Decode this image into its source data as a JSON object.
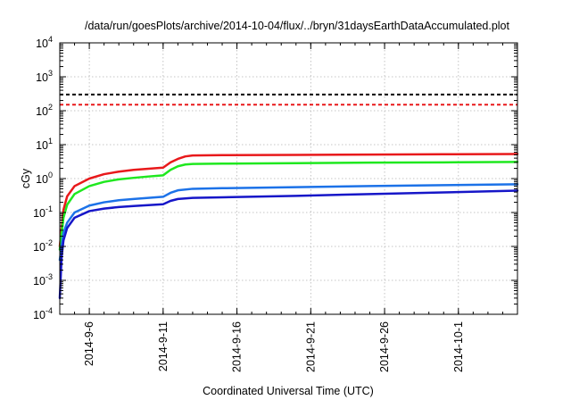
{
  "chart_data": {
    "type": "line",
    "title": "/data/run/goesPlots/archive/2014-10-04/flux/../bryn/31daysEarthDataAccumulated.plot",
    "xlabel": "Coordinated Universal Time (UTC)",
    "ylabel": "cGy",
    "xlim": [
      "2014-09-04",
      "2014-10-05"
    ],
    "ylim": [
      0.0001,
      10000
    ],
    "yscale": "log",
    "grid": true,
    "x_ticks": [
      {
        "date": "2014-09-06",
        "label": "2014-9-6"
      },
      {
        "date": "2014-09-11",
        "label": "2014-9-11"
      },
      {
        "date": "2014-09-16",
        "label": "2014-9-16"
      },
      {
        "date": "2014-09-21",
        "label": "2014-9-21"
      },
      {
        "date": "2014-09-26",
        "label": "2014-9-26"
      },
      {
        "date": "2014-10-01",
        "label": "2014-10-1"
      }
    ],
    "y_ticks": [
      {
        "value": 0.0001,
        "base": "10",
        "exp": "-4"
      },
      {
        "value": 0.001,
        "base": "10",
        "exp": "-3"
      },
      {
        "value": 0.01,
        "base": "10",
        "exp": "-2"
      },
      {
        "value": 0.1,
        "base": "10",
        "exp": "-1"
      },
      {
        "value": 1,
        "base": "10",
        "exp": "0"
      },
      {
        "value": 10,
        "base": "10",
        "exp": "1"
      },
      {
        "value": 100,
        "base": "10",
        "exp": "2"
      },
      {
        "value": 1000,
        "base": "10",
        "exp": "3"
      },
      {
        "value": 10000,
        "base": "10",
        "exp": "4"
      }
    ],
    "reference_lines": [
      {
        "y": 300,
        "color": "#000000",
        "style": "dashed"
      },
      {
        "y": 150,
        "color": "#e8191b",
        "style": "dashed"
      }
    ],
    "series": [
      {
        "color": "#e8191b",
        "points": [
          [
            "2014-09-04T00:00",
            0.01
          ],
          [
            "2014-09-04T06:00",
            0.12
          ],
          [
            "2014-09-04T12:00",
            0.3
          ],
          [
            "2014-09-05T00:00",
            0.6
          ],
          [
            "2014-09-06T00:00",
            1.0
          ],
          [
            "2014-09-07T00:00",
            1.35
          ],
          [
            "2014-09-08T00:00",
            1.6
          ],
          [
            "2014-09-09T00:00",
            1.8
          ],
          [
            "2014-09-10T00:00",
            1.95
          ],
          [
            "2014-09-11T00:00",
            2.1
          ],
          [
            "2014-09-11T12:00",
            3.0
          ],
          [
            "2014-09-12T00:00",
            3.8
          ],
          [
            "2014-09-12T12:00",
            4.5
          ],
          [
            "2014-09-13T00:00",
            4.8
          ],
          [
            "2014-09-15T00:00",
            4.9
          ],
          [
            "2014-09-20T00:00",
            5.0
          ],
          [
            "2014-09-25T00:00",
            5.1
          ],
          [
            "2014-09-30T00:00",
            5.2
          ],
          [
            "2014-10-05T00:00",
            5.3
          ]
        ]
      },
      {
        "color": "#1fe81f",
        "points": [
          [
            "2014-09-04T00:00",
            0.008
          ],
          [
            "2014-09-04T06:00",
            0.07
          ],
          [
            "2014-09-04T12:00",
            0.17
          ],
          [
            "2014-09-05T00:00",
            0.35
          ],
          [
            "2014-09-06T00:00",
            0.6
          ],
          [
            "2014-09-07T00:00",
            0.8
          ],
          [
            "2014-09-08T00:00",
            0.95
          ],
          [
            "2014-09-09T00:00",
            1.05
          ],
          [
            "2014-09-10T00:00",
            1.15
          ],
          [
            "2014-09-11T00:00",
            1.25
          ],
          [
            "2014-09-11T12:00",
            1.8
          ],
          [
            "2014-09-12T00:00",
            2.3
          ],
          [
            "2014-09-12T12:00",
            2.6
          ],
          [
            "2014-09-13T00:00",
            2.7
          ],
          [
            "2014-09-15T00:00",
            2.75
          ],
          [
            "2014-09-20T00:00",
            2.85
          ],
          [
            "2014-09-25T00:00",
            2.95
          ],
          [
            "2014-09-30T00:00",
            3.0
          ],
          [
            "2014-10-05T00:00",
            3.1
          ]
        ]
      },
      {
        "color": "#1c72e8",
        "points": [
          [
            "2014-09-04T00:00",
            0.004
          ],
          [
            "2014-09-04T06:00",
            0.025
          ],
          [
            "2014-09-04T12:00",
            0.05
          ],
          [
            "2014-09-05T00:00",
            0.1
          ],
          [
            "2014-09-06T00:00",
            0.16
          ],
          [
            "2014-09-07T00:00",
            0.2
          ],
          [
            "2014-09-08T00:00",
            0.23
          ],
          [
            "2014-09-09T00:00",
            0.25
          ],
          [
            "2014-09-10T00:00",
            0.27
          ],
          [
            "2014-09-11T00:00",
            0.29
          ],
          [
            "2014-09-11T12:00",
            0.38
          ],
          [
            "2014-09-12T00:00",
            0.45
          ],
          [
            "2014-09-13T00:00",
            0.5
          ],
          [
            "2014-09-15T00:00",
            0.52
          ],
          [
            "2014-09-20T00:00",
            0.56
          ],
          [
            "2014-09-25T00:00",
            0.6
          ],
          [
            "2014-09-30T00:00",
            0.64
          ],
          [
            "2014-10-05T00:00",
            0.68
          ]
        ]
      },
      {
        "color": "#1616c8",
        "points": [
          [
            "2014-09-04T00:00",
            0.0003
          ],
          [
            "2014-09-04T03:00",
            0.005
          ],
          [
            "2014-09-04T06:00",
            0.015
          ],
          [
            "2014-09-04T12:00",
            0.035
          ],
          [
            "2014-09-05T00:00",
            0.07
          ],
          [
            "2014-09-06T00:00",
            0.11
          ],
          [
            "2014-09-07T00:00",
            0.13
          ],
          [
            "2014-09-08T00:00",
            0.145
          ],
          [
            "2014-09-09T00:00",
            0.155
          ],
          [
            "2014-09-10T00:00",
            0.165
          ],
          [
            "2014-09-11T00:00",
            0.175
          ],
          [
            "2014-09-11T12:00",
            0.22
          ],
          [
            "2014-09-12T00:00",
            0.25
          ],
          [
            "2014-09-13T00:00",
            0.27
          ],
          [
            "2014-09-15T00:00",
            0.28
          ],
          [
            "2014-09-20T00:00",
            0.31
          ],
          [
            "2014-09-25T00:00",
            0.35
          ],
          [
            "2014-09-30T00:00",
            0.39
          ],
          [
            "2014-10-05T00:00",
            0.44
          ]
        ]
      }
    ]
  }
}
